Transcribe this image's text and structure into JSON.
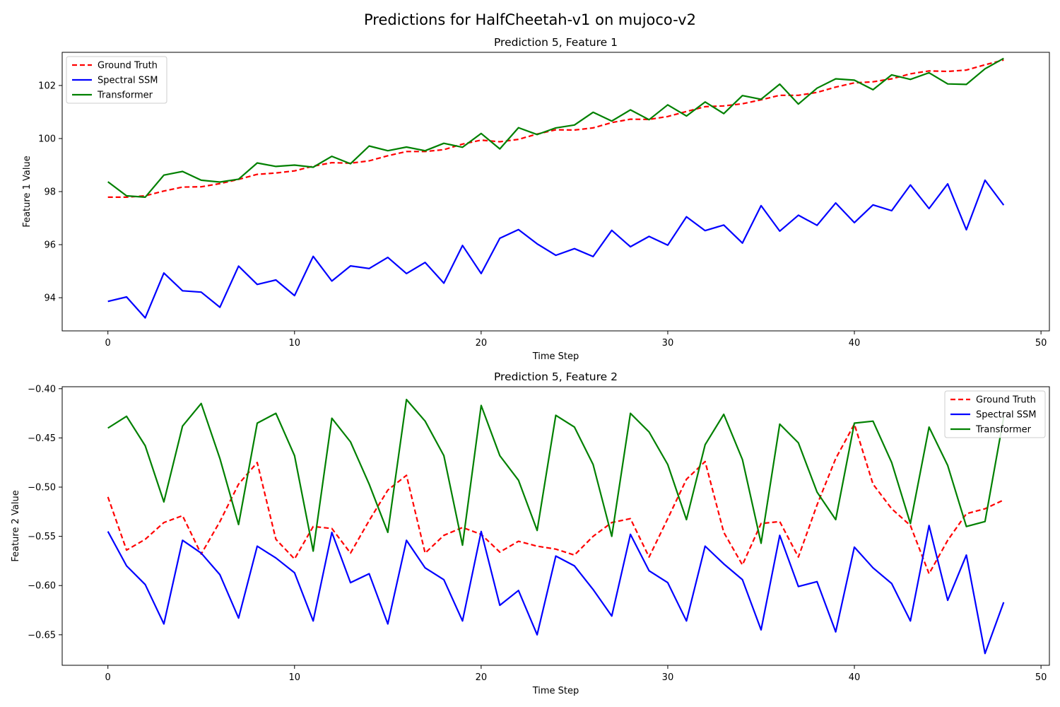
{
  "figure": {
    "suptitle": "Predictions for HalfCheetah-v1 on mujoco-v2"
  },
  "chart_data": [
    {
      "type": "line",
      "title": "Prediction 5, Feature 1",
      "xlabel": "Time Step",
      "ylabel": "Feature 1 Value",
      "xlim": [
        -2.45,
        50.45
      ],
      "ylim": [
        92.75,
        103.25
      ],
      "xticks": [
        0,
        10,
        20,
        30,
        40,
        50
      ],
      "yticks": [
        94,
        96,
        98,
        100,
        102
      ],
      "legend_position": "upper left",
      "grid": false,
      "x": [
        0,
        1,
        2,
        3,
        4,
        5,
        6,
        7,
        8,
        9,
        10,
        11,
        12,
        13,
        14,
        15,
        16,
        17,
        18,
        19,
        20,
        21,
        22,
        23,
        24,
        25,
        26,
        27,
        28,
        29,
        30,
        31,
        32,
        33,
        34,
        35,
        36,
        37,
        38,
        39,
        40,
        41,
        42,
        43,
        44,
        45,
        46,
        47,
        48
      ],
      "series": [
        {
          "name": "Ground Truth",
          "color": "#ff0000",
          "dash": true,
          "values": [
            97.79,
            97.79,
            97.84,
            98.02,
            98.17,
            98.18,
            98.3,
            98.46,
            98.65,
            98.7,
            98.78,
            98.96,
            99.09,
            99.07,
            99.16,
            99.35,
            99.51,
            99.51,
            99.58,
            99.79,
            99.94,
            99.88,
            99.97,
            100.17,
            100.33,
            100.32,
            100.4,
            100.6,
            100.73,
            100.72,
            100.83,
            101.02,
            101.2,
            101.23,
            101.31,
            101.46,
            101.63,
            101.63,
            101.74,
            101.94,
            102.1,
            102.14,
            102.25,
            102.44,
            102.55,
            102.53,
            102.58,
            102.78,
            102.96
          ]
        },
        {
          "name": "Spectral SSM",
          "color": "#0000ff",
          "dash": false,
          "values": [
            93.86,
            94.03,
            93.24,
            94.93,
            94.26,
            94.21,
            93.64,
            95.19,
            94.5,
            94.67,
            94.08,
            95.56,
            94.63,
            95.2,
            95.1,
            95.52,
            94.91,
            95.33,
            94.55,
            95.97,
            94.91,
            96.24,
            96.57,
            96.03,
            95.6,
            95.85,
            95.55,
            96.54,
            95.92,
            96.31,
            95.98,
            97.05,
            96.53,
            96.74,
            96.06,
            97.47,
            96.51,
            97.11,
            96.73,
            97.57,
            96.83,
            97.5,
            97.28,
            98.25,
            97.36,
            98.29,
            96.56,
            98.43,
            97.49
          ]
        },
        {
          "name": "Transformer",
          "color": "#008000",
          "dash": false,
          "values": [
            98.37,
            97.84,
            97.79,
            98.62,
            98.76,
            98.43,
            98.36,
            98.47,
            99.08,
            98.95,
            99.0,
            98.92,
            99.33,
            99.05,
            99.72,
            99.54,
            99.68,
            99.54,
            99.82,
            99.67,
            100.19,
            99.61,
            100.41,
            100.15,
            100.4,
            100.51,
            100.99,
            100.66,
            101.08,
            100.71,
            101.27,
            100.85,
            101.38,
            100.94,
            101.62,
            101.48,
            102.05,
            101.3,
            101.9,
            102.25,
            102.2,
            101.84,
            102.4,
            102.23,
            102.48,
            102.06,
            102.04,
            102.63,
            103.02
          ]
        }
      ]
    },
    {
      "type": "line",
      "title": "Prediction 5, Feature 2",
      "xlabel": "Time Step",
      "ylabel": "Feature 2 Value",
      "xlim": [
        -2.45,
        50.45
      ],
      "ylim": [
        -0.681,
        -0.398
      ],
      "xticks": [
        0,
        10,
        20,
        30,
        40,
        50
      ],
      "yticks": [
        -0.4,
        -0.45,
        -0.5,
        -0.55,
        -0.6,
        -0.65
      ],
      "legend_position": "upper right",
      "grid": false,
      "x": [
        0,
        1,
        2,
        3,
        4,
        5,
        6,
        7,
        8,
        9,
        10,
        11,
        12,
        13,
        14,
        15,
        16,
        17,
        18,
        19,
        20,
        21,
        22,
        23,
        24,
        25,
        26,
        27,
        28,
        29,
        30,
        31,
        32,
        33,
        34,
        35,
        36,
        37,
        38,
        39,
        40,
        41,
        42,
        43,
        44,
        45,
        46,
        47,
        48
      ],
      "series": [
        {
          "name": "Ground Truth",
          "color": "#ff0000",
          "dash": true,
          "values": [
            -0.51,
            -0.564,
            -0.553,
            -0.536,
            -0.529,
            -0.568,
            -0.535,
            -0.497,
            -0.475,
            -0.553,
            -0.573,
            -0.54,
            -0.542,
            -0.567,
            -0.534,
            -0.503,
            -0.488,
            -0.567,
            -0.549,
            -0.541,
            -0.548,
            -0.566,
            -0.555,
            -0.56,
            -0.563,
            -0.569,
            -0.55,
            -0.536,
            -0.532,
            -0.571,
            -0.532,
            -0.492,
            -0.474,
            -0.546,
            -0.579,
            -0.537,
            -0.535,
            -0.571,
            -0.518,
            -0.471,
            -0.436,
            -0.497,
            -0.522,
            -0.539,
            -0.588,
            -0.554,
            -0.527,
            -0.522,
            -0.513
          ]
        },
        {
          "name": "Spectral SSM",
          "color": "#0000ff",
          "dash": false,
          "values": [
            -0.545,
            -0.58,
            -0.599,
            -0.639,
            -0.554,
            -0.567,
            -0.589,
            -0.633,
            -0.56,
            -0.572,
            -0.587,
            -0.636,
            -0.546,
            -0.597,
            -0.588,
            -0.639,
            -0.554,
            -0.582,
            -0.594,
            -0.636,
            -0.545,
            -0.62,
            -0.605,
            -0.65,
            -0.57,
            -0.58,
            -0.604,
            -0.631,
            -0.548,
            -0.585,
            -0.597,
            -0.636,
            -0.56,
            -0.578,
            -0.594,
            -0.645,
            -0.549,
            -0.601,
            -0.596,
            -0.647,
            -0.561,
            -0.582,
            -0.598,
            -0.636,
            -0.539,
            -0.615,
            -0.569,
            -0.669,
            -0.617
          ]
        },
        {
          "name": "Transformer",
          "color": "#008000",
          "dash": false,
          "values": [
            -0.44,
            -0.428,
            -0.458,
            -0.515,
            -0.438,
            -0.415,
            -0.471,
            -0.538,
            -0.435,
            -0.425,
            -0.468,
            -0.565,
            -0.43,
            -0.454,
            -0.497,
            -0.546,
            -0.411,
            -0.433,
            -0.468,
            -0.559,
            -0.417,
            -0.468,
            -0.493,
            -0.544,
            -0.427,
            -0.439,
            -0.477,
            -0.55,
            -0.425,
            -0.444,
            -0.477,
            -0.533,
            -0.457,
            -0.426,
            -0.472,
            -0.557,
            -0.436,
            -0.455,
            -0.505,
            -0.533,
            -0.435,
            -0.433,
            -0.475,
            -0.537,
            -0.439,
            -0.478,
            -0.54,
            -0.535,
            -0.429
          ]
        }
      ]
    }
  ]
}
